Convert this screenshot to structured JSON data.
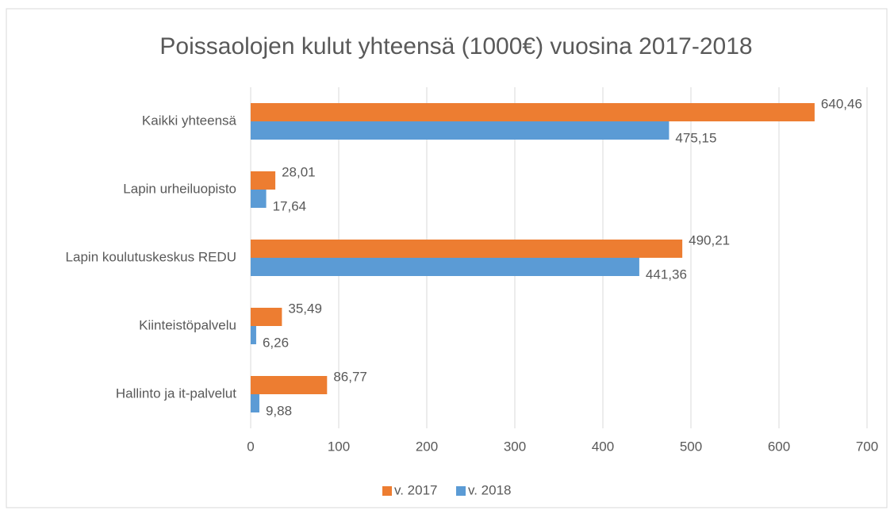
{
  "chart_data": {
    "type": "bar",
    "orientation": "horizontal",
    "title": "Poissaolojen kulut yhteensä (1000€) vuosina 2017-2018",
    "categories": [
      "Kaikki yhteensä",
      "Lapin urheiluopisto",
      "Lapin koulutuskeskus REDU",
      "Kiinteistöpalvelu",
      "Hallinto ja it-palvelut"
    ],
    "series": [
      {
        "name": "v. 2017",
        "color": "#ed7d31",
        "values": [
          640.46,
          28.01,
          490.21,
          35.49,
          86.77
        ],
        "value_labels": [
          "640,46",
          "28,01",
          "490,21",
          "35,49",
          "86,77"
        ]
      },
      {
        "name": "v. 2018",
        "color": "#5b9bd5",
        "values": [
          475.15,
          17.64,
          441.36,
          6.26,
          9.88
        ],
        "value_labels": [
          "475,15",
          "17,64",
          "441,36",
          "6,26",
          "9,88"
        ]
      }
    ],
    "xlim": [
      0,
      700
    ],
    "xticks": [
      0,
      100,
      200,
      300,
      400,
      500,
      600,
      700
    ],
    "grid": true,
    "legend": "bottom"
  }
}
